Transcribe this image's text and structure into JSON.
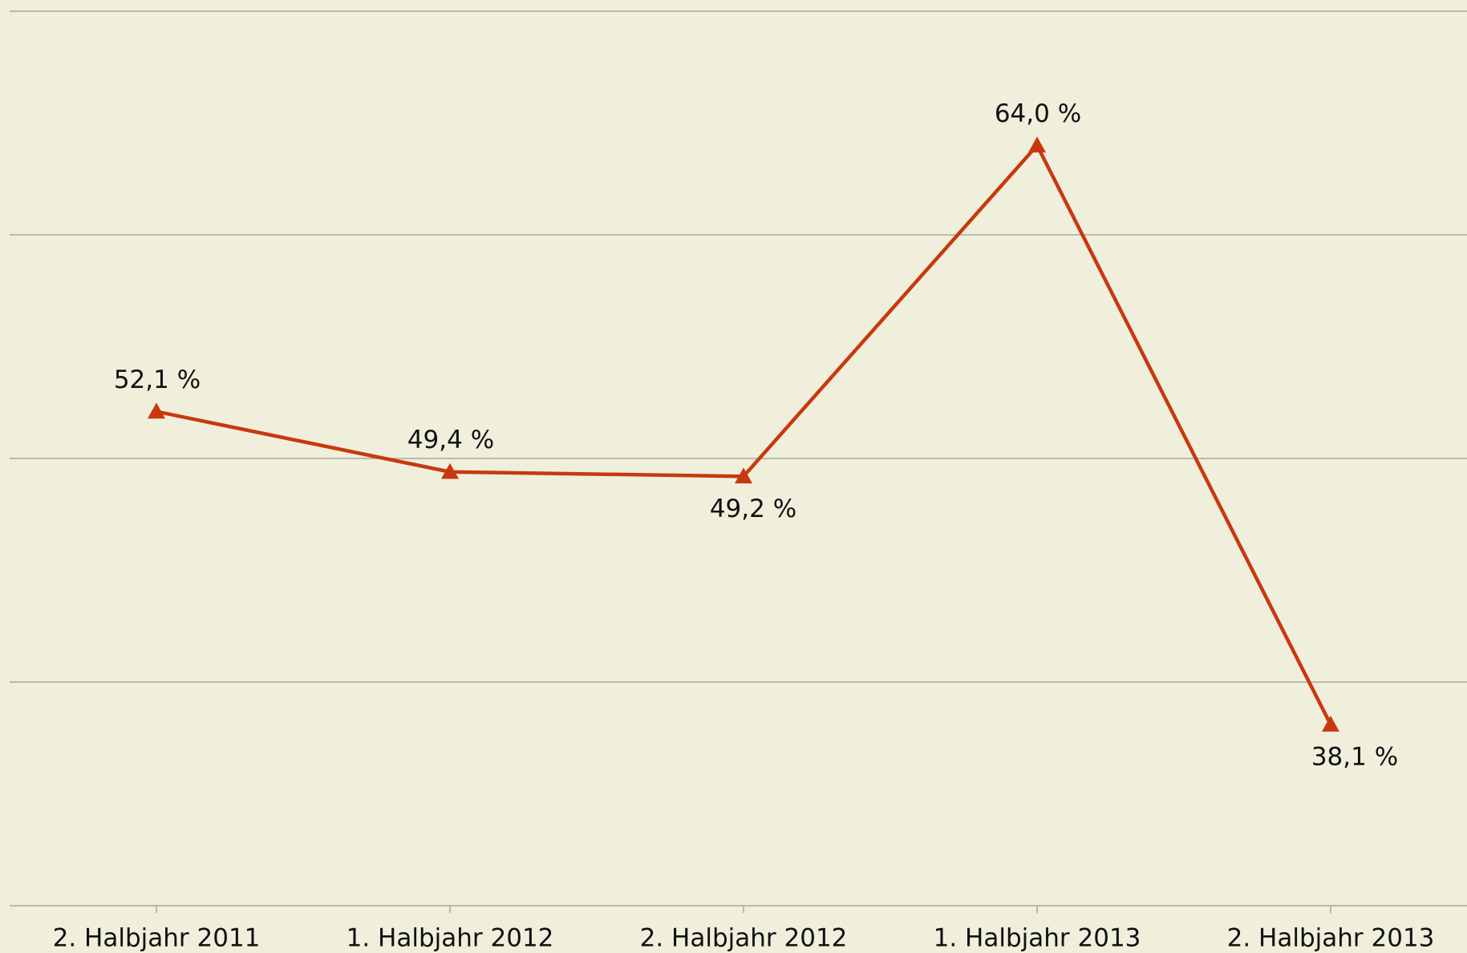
{
  "chart_data": {
    "type": "line",
    "categories": [
      "2. Halbjahr 2011",
      "1. Halbjahr 2012",
      "2. Halbjahr 2012",
      "1. Halbjahr 2013",
      "2. Halbjahr 2013"
    ],
    "series": [
      {
        "color": "#c8380f",
        "values": [
          52.1,
          49.4,
          49.2,
          64.0,
          38.1
        ],
        "value_labels": [
          "52,1 %",
          "49,4 %",
          "49,2 %",
          "64,0 %",
          "38,1 %"
        ]
      }
    ],
    "ylim": [
      30,
      70
    ],
    "yticks": [
      30,
      40,
      50,
      60,
      70
    ],
    "grid": true
  }
}
